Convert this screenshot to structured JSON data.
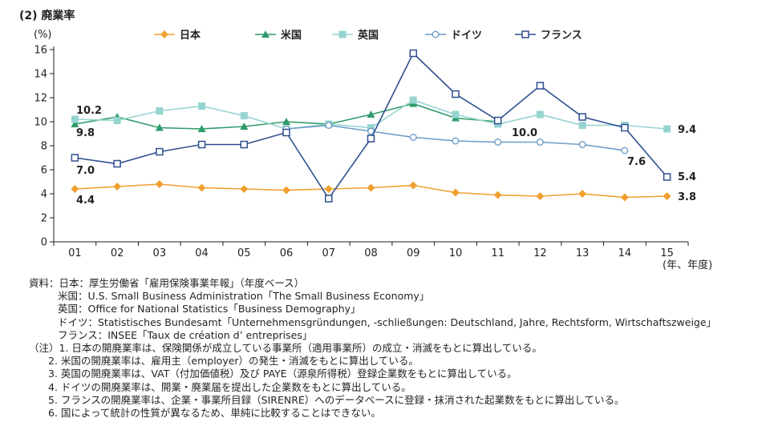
{
  "chart_data": {
    "type": "line",
    "title": "(2) 廃業率",
    "ylabel": "(%)",
    "xlabel": "(年、年度)",
    "ylim": [
      0,
      16
    ],
    "yticks": [
      0,
      2,
      4,
      6,
      8,
      10,
      12,
      14,
      16
    ],
    "categories": [
      "01",
      "02",
      "03",
      "04",
      "05",
      "06",
      "07",
      "08",
      "09",
      "10",
      "11",
      "12",
      "13",
      "14",
      "15"
    ],
    "series": [
      {
        "name": "日本",
        "color": "#f0a030",
        "marker": "diamond",
        "values": [
          4.4,
          4.6,
          4.8,
          4.5,
          4.4,
          4.3,
          4.4,
          4.5,
          4.7,
          4.1,
          3.9,
          3.8,
          4.0,
          3.7,
          3.8
        ]
      },
      {
        "name": "米国",
        "color": "#2e9b6a",
        "marker": "triangle",
        "values": [
          9.8,
          10.4,
          9.5,
          9.4,
          9.6,
          10.0,
          9.8,
          10.6,
          11.5,
          10.3,
          10.0,
          null,
          null,
          null,
          null
        ]
      },
      {
        "name": "英国",
        "color": "#96d4d0",
        "marker": "square",
        "values": [
          10.2,
          10.1,
          10.9,
          11.3,
          10.5,
          9.4,
          9.8,
          9.5,
          11.8,
          10.6,
          9.8,
          10.6,
          9.7,
          9.7,
          9.4
        ]
      },
      {
        "name": "ドイツ",
        "color": "#6d9cc8",
        "marker": "circle",
        "values": [
          null,
          null,
          null,
          null,
          null,
          9.4,
          9.7,
          9.2,
          8.7,
          8.4,
          8.3,
          8.3,
          8.1,
          7.6,
          null
        ]
      },
      {
        "name": "フランス",
        "color": "#2f4f8f",
        "marker": "hollowsquare",
        "values": [
          7.0,
          6.5,
          7.5,
          8.1,
          8.1,
          9.1,
          3.6,
          8.6,
          15.7,
          12.3,
          10.1,
          13.0,
          10.4,
          9.5,
          5.4
        ]
      }
    ],
    "annotations": [
      {
        "text": "10.2"
      },
      {
        "text": "9.8"
      },
      {
        "text": "7.0"
      },
      {
        "text": "4.4"
      },
      {
        "text": "10.0"
      },
      {
        "text": "7.6"
      },
      {
        "text": "9.4"
      },
      {
        "text": "5.4"
      },
      {
        "text": "3.8"
      }
    ]
  },
  "notes": {
    "source": [
      "資料：日本：厚生労働省「雇用保険事業年報」（年度ベース）",
      "米国：U.S. Small Business Administration「The Small Business Economy」",
      "英国：Office for National Statistics「Business Demography」",
      "ドイツ：Statistisches Bundesamt「Unternehmensgründungen, -schließungen: Deutschland, Jahre, Rechtsform, Wirtschaftszweige」",
      "フランス：INSEE「Taux de création d’ entreprises」"
    ],
    "footnotes": [
      "（注）1. 日本の開廃業率は、保険関係が成立している事業所（適用事業所）の成立・消滅をもとに算出している。",
      "2. 米国の開廃業率は、雇用主（employer）の発生・消滅をもとに算出している。",
      "3. 英国の開廃業率は、VAT（付加価値税）及び PAYE（源泉所得税）登録企業数をもとに算出している。",
      "4. ドイツの開廃業率は、開業・廃業届を提出した企業数をもとに算出している。",
      "5. フランスの開廃業率は、企業・事業所目録（SIRENRE）へのデータベースに登録・抹消された起業数をもとに算出している。",
      "6. 国によって統計の性質が異なるため、単純に比較することはできない。"
    ]
  }
}
